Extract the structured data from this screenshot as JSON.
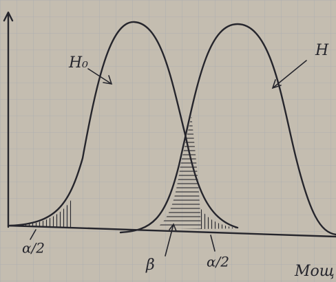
{
  "labels": {
    "h0": "H₀",
    "h1": "H",
    "alpha_left": "α/2",
    "beta": "β",
    "alpha_right": "α/2",
    "corner": "Мощ"
  }
}
